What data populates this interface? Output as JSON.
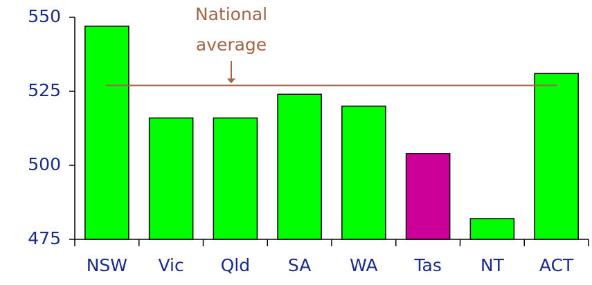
{
  "chart_data": {
    "type": "bar",
    "categories": [
      "NSW",
      "Vic",
      "Qld",
      "SA",
      "WA",
      "Tas",
      "NT",
      "ACT"
    ],
    "values": [
      547,
      516,
      516,
      524,
      520,
      504,
      482,
      531
    ],
    "colors": [
      "#00ff00",
      "#00ff00",
      "#00ff00",
      "#00ff00",
      "#00ff00",
      "#cc0099",
      "#00ff00",
      "#00ff00"
    ],
    "ylim": [
      475,
      550
    ],
    "yticks": [
      475,
      500,
      525,
      550
    ],
    "grid": false,
    "annotation": {
      "text": [
        "National",
        "average"
      ],
      "value": 527,
      "color": "#a0664a"
    }
  }
}
